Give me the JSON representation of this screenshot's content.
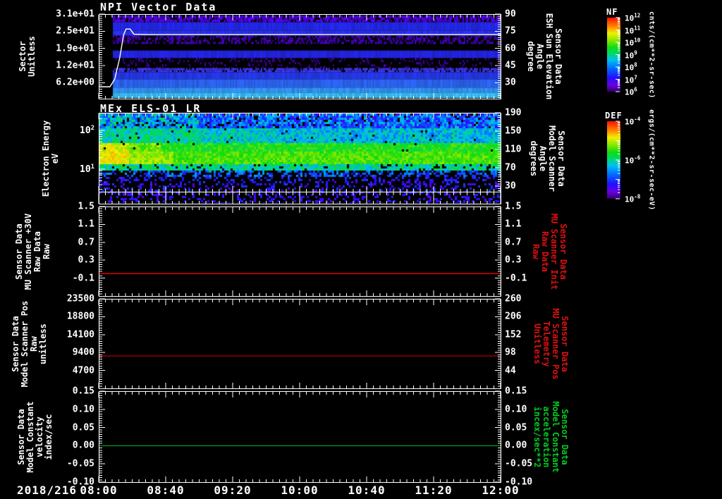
{
  "chart_data": {
    "type": "multi-panel-spectrogram-timeseries",
    "date_label": "2018/216",
    "time_axis": {
      "labels": [
        "08:00",
        "08:40",
        "09:20",
        "10:00",
        "10:40",
        "11:20",
        "12:00"
      ],
      "major_interval_min": 40,
      "minor_per_major": 10
    },
    "colormap_stops": [
      [
        0.0,
        "#000000"
      ],
      [
        0.06,
        "#30006a"
      ],
      [
        0.14,
        "#6a00e0"
      ],
      [
        0.24,
        "#2010ff"
      ],
      [
        0.36,
        "#0070ff"
      ],
      [
        0.46,
        "#00c0f0"
      ],
      [
        0.54,
        "#00d870"
      ],
      [
        0.62,
        "#10dc10"
      ],
      [
        0.72,
        "#90e800"
      ],
      [
        0.8,
        "#f0f000"
      ],
      [
        0.88,
        "#ff9000"
      ],
      [
        1.0,
        "#ff1000"
      ]
    ],
    "panels": [
      {
        "kind": "spectrogram",
        "title": "NPI Vector Data",
        "left_axis": {
          "title_lines": [
            "Sector",
            "Unitless"
          ],
          "scale": "linear",
          "range": [
            0.4,
            31
          ],
          "tick_labels": [
            "3.1e+01",
            "2.5e+01",
            "1.9e+01",
            "1.2e+01",
            "6.2e+00"
          ],
          "tick_values": [
            31,
            24.8,
            18.6,
            12.4,
            6.2
          ],
          "minor_per_major": 8
        },
        "right_axis": {
          "title_lines": [
            "Sensor Data",
            "ESH Sun Elevation",
            "Angle",
            "degree"
          ],
          "title_color": "#ffffff",
          "scale": "linear",
          "range": [
            16,
            90
          ],
          "tick_labels": [
            "90",
            "75",
            "60",
            "45",
            "30"
          ],
          "tick_values": [
            90,
            75,
            60,
            45,
            30
          ],
          "minor_per_major": 8
        },
        "colorbar": {
          "name": "NF",
          "units": "cnts/(cm**2-sr-sec)",
          "tick_base": "10",
          "tick_exponents": [
            "12",
            "11",
            "10",
            "9",
            "8",
            "7",
            "6"
          ],
          "decade_range": [
            6,
            12
          ]
        },
        "overlay_line": {
          "color": "#ffffff",
          "units": "sector",
          "points": [
            [
              0,
              4.7
            ],
            [
              0.028,
              4.7
            ],
            [
              0.04,
              7.5
            ],
            [
              0.052,
              15
            ],
            [
              0.062,
              23.5
            ],
            [
              0.068,
              25.6
            ],
            [
              0.078,
              25.6
            ],
            [
              0.088,
              23.7
            ],
            [
              0.12,
              23.6
            ],
            [
              1,
              23.6
            ]
          ]
        },
        "data_start_frac": 0.033,
        "bands": [
          {
            "y0": 0.008,
            "y1": 0.09,
            "color": "#4a00d0",
            "mode": "speckle",
            "density": 0.75
          },
          {
            "y0": 0.09,
            "y1": 0.19,
            "color": "#2226dd",
            "mode": "solid"
          },
          {
            "y0": 0.19,
            "y1": 0.25,
            "color": "#2a30e2",
            "mode": "solid"
          },
          {
            "y0": 0.25,
            "y1": 0.35,
            "color": "#3f00b0",
            "mode": "speckle",
            "density": 0.5
          },
          {
            "y0": 0.43,
            "y1": 0.52,
            "color": "#2222d8",
            "mode": "solid"
          },
          {
            "y0": 0.52,
            "y1": 0.57,
            "color": "#38009a",
            "mode": "speckle",
            "density": 0.22
          },
          {
            "y0": 0.57,
            "y1": 0.64,
            "color": "#38009a",
            "mode": "speckle",
            "density": 0.12
          },
          {
            "y0": 0.64,
            "y1": 0.69,
            "color": "#3c30dd",
            "mode": "speckle",
            "density": 0.8
          },
          {
            "y0": 0.69,
            "y1": 0.775,
            "color": "#2335e0",
            "mode": "solid"
          },
          {
            "y0": 0.775,
            "y1": 0.875,
            "color": "#2a5fe8",
            "mode": "solid"
          },
          {
            "y0": 0.875,
            "y1": 0.94,
            "color": "#2f8ce8",
            "mode": "solid"
          },
          {
            "y0": 0.94,
            "y1": 1.0,
            "color": "#38b4e8",
            "mode": "solid"
          }
        ]
      },
      {
        "kind": "spectrogram",
        "title": "MEx ELS-01 LR",
        "left_axis": {
          "title_lines": [
            "Electron Energy",
            "eV"
          ],
          "scale": "log",
          "range_log10": [
            0.417,
            2.454
          ],
          "tick_exponents": [
            "2",
            "1"
          ],
          "tick_values": [
            100,
            10
          ]
        },
        "right_axis": {
          "title_lines": [
            "Sensor Data",
            "Model Scanner",
            "Angle",
            "degrees"
          ],
          "title_color": "#ffffff",
          "scale": "linear",
          "range": [
            17.7,
            190
          ],
          "tick_labels": [
            "190",
            "150",
            "110",
            "70",
            "30"
          ],
          "tick_values": [
            190,
            150,
            110,
            70,
            30
          ],
          "minor_per_major": 8
        },
        "colorbar": {
          "name": "DEF",
          "units": "ergs/(cm**2-sr-sec-eV)",
          "tick_base": "10",
          "tick_exponents": [
            "-4",
            "-6",
            "-8"
          ],
          "decade_range": [
            -8,
            -4
          ]
        },
        "noise_rows": [
          {
            "y0": 0.0,
            "y1": 0.16,
            "level": 0.34,
            "noise": 0.15,
            "black": 0.1,
            "lx": [
              [
                0.25,
                0.42
              ],
              [
                2,
                0.34
              ]
            ]
          },
          {
            "y0": 0.16,
            "y1": 0.31,
            "level": 0.45,
            "noise": 0.1,
            "black": 0.02,
            "lx": [
              [
                0.25,
                0.52
              ],
              [
                0.45,
                0.48
              ],
              [
                2,
                0.45
              ]
            ]
          },
          {
            "y0": 0.31,
            "y1": 0.42,
            "level": 0.62,
            "noise": 0.07,
            "black": 0.01,
            "lx": [
              [
                0.07,
                0.77
              ],
              [
                0.15,
                0.7
              ],
              [
                2,
                0.62
              ]
            ]
          },
          {
            "y0": 0.42,
            "y1": 0.56,
            "level": 0.66,
            "noise": 0.06,
            "black": 0.0,
            "lx": [
              [
                0.07,
                0.8
              ],
              [
                0.18,
                0.72
              ],
              [
                2,
                0.66
              ]
            ]
          },
          {
            "y0": 0.56,
            "y1": 0.63,
            "level": 0.52,
            "noise": 0.1,
            "black": 0.1
          },
          {
            "y0": 0.63,
            "y1": 0.7,
            "level": 0.33,
            "noise": 0.1,
            "black": 0.45
          },
          {
            "y0": 0.7,
            "y1": 0.865,
            "level": 0.24,
            "noise": 0.08,
            "black": 0.72
          },
          {
            "y0": 0.865,
            "y1": 1.0,
            "level": 0.22,
            "noise": 0.06,
            "black": 0.72
          }
        ]
      },
      {
        "kind": "line",
        "left_axis": {
          "title_lines": [
            "Sensor Data",
            "MU Scanner +30V",
            "Raw Data",
            "Raw"
          ],
          "scale": "linear",
          "range": [
            -0.5,
            1.5
          ],
          "tick_labels": [
            "1.5",
            "1.1",
            "0.7",
            "0.3",
            "-0.1"
          ],
          "tick_values": [
            1.5,
            1.1,
            0.7,
            0.3,
            -0.1
          ],
          "minor_per_major": 8
        },
        "right_axis": {
          "title_lines": [
            "Sensor Data",
            "MU Scanner Init",
            "Raw Data",
            "Raw"
          ],
          "title_color": "#e01010",
          "scale": "linear",
          "range": [
            -0.5,
            1.5
          ],
          "tick_labels": [
            "1.5",
            "1.1",
            "0.7",
            "0.3",
            "-0.1"
          ],
          "tick_values": [
            1.5,
            1.1,
            0.7,
            0.3,
            -0.1
          ],
          "minor_per_major": 8
        },
        "line": {
          "color": "#dd0000",
          "value": 0.0
        }
      },
      {
        "kind": "line",
        "left_axis": {
          "title_lines": [
            "Sensor Data",
            "Model Scanner Pos",
            "Raw",
            "unitless"
          ],
          "scale": "linear",
          "range": [
            0,
            23500
          ],
          "tick_labels": [
            "23500",
            "18800",
            "14100",
            "9400",
            "4700"
          ],
          "tick_values": [
            23500,
            18800,
            14100,
            9400,
            4700
          ],
          "minor_per_major": 8
        },
        "right_axis": {
          "title_lines": [
            "Sensor Data",
            "MU Scanner Pos",
            "Telemetry",
            "Unitless"
          ],
          "title_color": "#e01010",
          "scale": "linear",
          "range": [
            -10,
            260
          ],
          "tick_labels": [
            "260",
            "206",
            "152",
            "98",
            "44"
          ],
          "tick_values": [
            260,
            206,
            152,
            98,
            44
          ],
          "minor_per_major": 8
        },
        "line": {
          "color": "#dd0000",
          "value": 8500
        }
      },
      {
        "kind": "line",
        "left_axis": {
          "title_lines": [
            "Sensor Data",
            "Model Constant",
            "velocity",
            "index/sec"
          ],
          "scale": "linear",
          "range": [
            -0.1,
            0.15
          ],
          "tick_labels": [
            "0.15",
            "0.10",
            "0.05",
            "0.00",
            "-0.05",
            "-0.10"
          ],
          "tick_values": [
            0.15,
            0.1,
            0.05,
            0.0,
            -0.05,
            -0.1
          ],
          "minor_per_major": 8
        },
        "right_axis": {
          "title_lines": [
            "Sensor Data",
            "Model Constant",
            "acceleration",
            "incex/sec**2"
          ],
          "title_color": "#00cc22",
          "scale": "linear",
          "range": [
            -0.1,
            0.15
          ],
          "tick_labels": [
            "0.15",
            "0.10",
            "0.05",
            "0.00",
            "-0.05",
            "-0.10"
          ],
          "tick_values": [
            0.15,
            0.1,
            0.05,
            0.0,
            -0.05,
            -0.1
          ],
          "minor_per_major": 8
        },
        "line": {
          "color": "#00bb22",
          "value": 0.0
        }
      }
    ]
  }
}
